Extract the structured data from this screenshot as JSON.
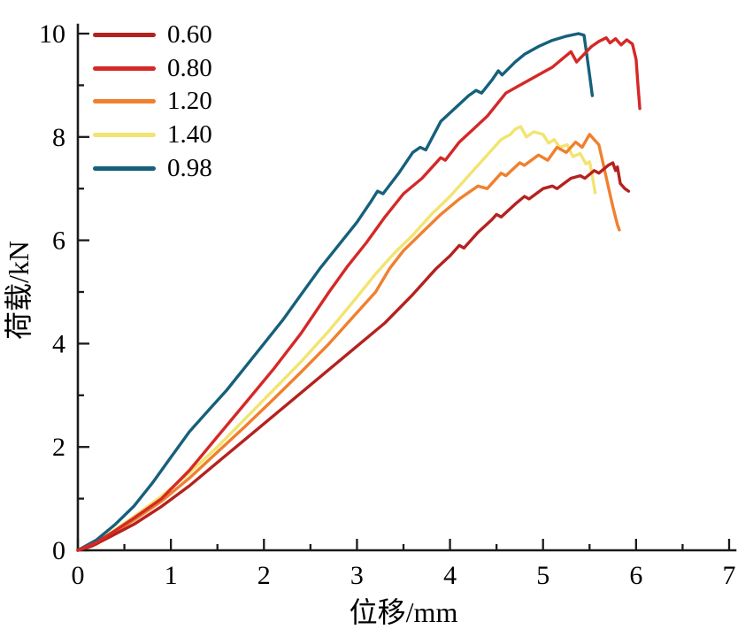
{
  "figure": {
    "background": "#ffffff"
  },
  "chart_data": {
    "type": "line",
    "title": "",
    "xlabel": "位移/mm",
    "ylabel": "荷载/kN",
    "xlim": [
      0,
      7
    ],
    "ylim": [
      0,
      10
    ],
    "xticks": [
      0,
      1,
      2,
      3,
      4,
      5,
      6,
      7
    ],
    "yticks": [
      0,
      2,
      4,
      6,
      8,
      10
    ],
    "x_minor_ticks": [
      0.5,
      1.5,
      2.5,
      3.5,
      4.5,
      5.5,
      6.5
    ],
    "y_minor_ticks": [
      1,
      3,
      5,
      7,
      9
    ],
    "grid": false,
    "legend_position": "top-left",
    "axis_color": "#1a1a1a",
    "draw_order": [
      "1.40",
      "1.20",
      "0.60",
      "0.98",
      "0.80"
    ],
    "series": [
      {
        "name": "0.60",
        "color": "#b4221f",
        "peak_kN": 7.5,
        "points": [
          [
            0,
            0
          ],
          [
            0.15,
            0.08
          ],
          [
            0.3,
            0.22
          ],
          [
            0.6,
            0.5
          ],
          [
            0.9,
            0.85
          ],
          [
            1.2,
            1.25
          ],
          [
            1.5,
            1.7
          ],
          [
            1.8,
            2.15
          ],
          [
            2.1,
            2.6
          ],
          [
            2.4,
            3.05
          ],
          [
            2.7,
            3.5
          ],
          [
            3.0,
            3.95
          ],
          [
            3.3,
            4.4
          ],
          [
            3.6,
            4.95
          ],
          [
            3.85,
            5.45
          ],
          [
            4.0,
            5.7
          ],
          [
            4.1,
            5.9
          ],
          [
            4.15,
            5.85
          ],
          [
            4.3,
            6.15
          ],
          [
            4.45,
            6.4
          ],
          [
            4.5,
            6.5
          ],
          [
            4.55,
            6.45
          ],
          [
            4.7,
            6.7
          ],
          [
            4.8,
            6.85
          ],
          [
            4.85,
            6.8
          ],
          [
            5.0,
            7.0
          ],
          [
            5.1,
            7.05
          ],
          [
            5.15,
            7.0
          ],
          [
            5.3,
            7.2
          ],
          [
            5.4,
            7.25
          ],
          [
            5.45,
            7.2
          ],
          [
            5.55,
            7.35
          ],
          [
            5.6,
            7.3
          ],
          [
            5.7,
            7.45
          ],
          [
            5.75,
            7.5
          ],
          [
            5.78,
            7.35
          ],
          [
            5.8,
            7.42
          ],
          [
            5.83,
            7.1
          ],
          [
            5.88,
            7.0
          ],
          [
            5.92,
            6.95
          ]
        ]
      },
      {
        "name": "0.80",
        "color": "#d42927",
        "peak_kN": 9.9,
        "points": [
          [
            0,
            0
          ],
          [
            0.2,
            0.15
          ],
          [
            0.4,
            0.38
          ],
          [
            0.6,
            0.62
          ],
          [
            0.9,
            1.0
          ],
          [
            1.2,
            1.55
          ],
          [
            1.5,
            2.2
          ],
          [
            1.8,
            2.85
          ],
          [
            2.1,
            3.5
          ],
          [
            2.4,
            4.2
          ],
          [
            2.7,
            5.0
          ],
          [
            2.9,
            5.5
          ],
          [
            3.1,
            5.95
          ],
          [
            3.3,
            6.45
          ],
          [
            3.5,
            6.9
          ],
          [
            3.7,
            7.2
          ],
          [
            3.9,
            7.6
          ],
          [
            3.95,
            7.55
          ],
          [
            4.1,
            7.9
          ],
          [
            4.25,
            8.15
          ],
          [
            4.4,
            8.4
          ],
          [
            4.6,
            8.85
          ],
          [
            4.75,
            9.0
          ],
          [
            4.9,
            9.15
          ],
          [
            5.0,
            9.25
          ],
          [
            5.1,
            9.35
          ],
          [
            5.2,
            9.5
          ],
          [
            5.3,
            9.65
          ],
          [
            5.36,
            9.45
          ],
          [
            5.44,
            9.6
          ],
          [
            5.52,
            9.75
          ],
          [
            5.6,
            9.85
          ],
          [
            5.68,
            9.92
          ],
          [
            5.72,
            9.82
          ],
          [
            5.78,
            9.9
          ],
          [
            5.84,
            9.78
          ],
          [
            5.9,
            9.88
          ],
          [
            5.96,
            9.8
          ],
          [
            6.0,
            9.5
          ],
          [
            6.02,
            9.0
          ],
          [
            6.04,
            8.55
          ]
        ]
      },
      {
        "name": "1.20",
        "color": "#f0802f",
        "peak_kN": 8.1,
        "points": [
          [
            0,
            0
          ],
          [
            0.2,
            0.12
          ],
          [
            0.4,
            0.35
          ],
          [
            0.6,
            0.58
          ],
          [
            0.9,
            0.95
          ],
          [
            1.2,
            1.4
          ],
          [
            1.5,
            1.9
          ],
          [
            1.8,
            2.4
          ],
          [
            2.1,
            2.92
          ],
          [
            2.4,
            3.45
          ],
          [
            2.7,
            4.0
          ],
          [
            3.0,
            4.6
          ],
          [
            3.2,
            5.0
          ],
          [
            3.35,
            5.45
          ],
          [
            3.5,
            5.8
          ],
          [
            3.7,
            6.15
          ],
          [
            3.9,
            6.5
          ],
          [
            4.1,
            6.8
          ],
          [
            4.3,
            7.05
          ],
          [
            4.4,
            7.0
          ],
          [
            4.55,
            7.3
          ],
          [
            4.6,
            7.25
          ],
          [
            4.75,
            7.5
          ],
          [
            4.8,
            7.45
          ],
          [
            4.95,
            7.65
          ],
          [
            5.05,
            7.55
          ],
          [
            5.15,
            7.8
          ],
          [
            5.25,
            7.7
          ],
          [
            5.35,
            7.9
          ],
          [
            5.42,
            7.8
          ],
          [
            5.5,
            8.05
          ],
          [
            5.55,
            7.95
          ],
          [
            5.6,
            7.85
          ],
          [
            5.65,
            7.45
          ],
          [
            5.7,
            7.05
          ],
          [
            5.75,
            6.65
          ],
          [
            5.8,
            6.3
          ],
          [
            5.82,
            6.2
          ]
        ]
      },
      {
        "name": "1.40",
        "color": "#f2e470",
        "peak_kN": 8.2,
        "points": [
          [
            0,
            0
          ],
          [
            0.2,
            0.15
          ],
          [
            0.4,
            0.4
          ],
          [
            0.6,
            0.65
          ],
          [
            0.9,
            1.05
          ],
          [
            1.2,
            1.5
          ],
          [
            1.5,
            2.0
          ],
          [
            1.8,
            2.55
          ],
          [
            2.1,
            3.1
          ],
          [
            2.4,
            3.65
          ],
          [
            2.7,
            4.25
          ],
          [
            3.0,
            4.9
          ],
          [
            3.2,
            5.35
          ],
          [
            3.4,
            5.75
          ],
          [
            3.6,
            6.1
          ],
          [
            3.8,
            6.5
          ],
          [
            4.0,
            6.85
          ],
          [
            4.2,
            7.25
          ],
          [
            4.4,
            7.65
          ],
          [
            4.55,
            7.95
          ],
          [
            4.65,
            8.05
          ],
          [
            4.7,
            8.15
          ],
          [
            4.76,
            8.2
          ],
          [
            4.82,
            8.0
          ],
          [
            4.9,
            8.1
          ],
          [
            5.0,
            8.05
          ],
          [
            5.06,
            7.88
          ],
          [
            5.12,
            7.95
          ],
          [
            5.18,
            7.8
          ],
          [
            5.26,
            7.85
          ],
          [
            5.32,
            7.62
          ],
          [
            5.4,
            7.68
          ],
          [
            5.46,
            7.48
          ],
          [
            5.5,
            7.52
          ],
          [
            5.53,
            7.25
          ],
          [
            5.56,
            6.92
          ]
        ]
      },
      {
        "name": "0.98",
        "color": "#16607b",
        "peak_kN": 10.0,
        "points": [
          [
            0,
            0
          ],
          [
            0.2,
            0.2
          ],
          [
            0.4,
            0.5
          ],
          [
            0.6,
            0.85
          ],
          [
            0.8,
            1.3
          ],
          [
            1.0,
            1.8
          ],
          [
            1.2,
            2.3
          ],
          [
            1.4,
            2.7
          ],
          [
            1.6,
            3.1
          ],
          [
            1.8,
            3.55
          ],
          [
            2.0,
            4.0
          ],
          [
            2.2,
            4.45
          ],
          [
            2.4,
            4.95
          ],
          [
            2.6,
            5.45
          ],
          [
            2.8,
            5.9
          ],
          [
            3.0,
            6.35
          ],
          [
            3.15,
            6.75
          ],
          [
            3.22,
            6.95
          ],
          [
            3.28,
            6.9
          ],
          [
            3.45,
            7.3
          ],
          [
            3.6,
            7.7
          ],
          [
            3.68,
            7.8
          ],
          [
            3.74,
            7.75
          ],
          [
            3.9,
            8.3
          ],
          [
            4.05,
            8.55
          ],
          [
            4.2,
            8.8
          ],
          [
            4.28,
            8.9
          ],
          [
            4.34,
            8.85
          ],
          [
            4.45,
            9.1
          ],
          [
            4.52,
            9.28
          ],
          [
            4.56,
            9.2
          ],
          [
            4.7,
            9.45
          ],
          [
            4.8,
            9.6
          ],
          [
            4.95,
            9.75
          ],
          [
            5.1,
            9.87
          ],
          [
            5.25,
            9.95
          ],
          [
            5.38,
            10.0
          ],
          [
            5.44,
            9.97
          ],
          [
            5.47,
            9.6
          ],
          [
            5.5,
            9.2
          ],
          [
            5.53,
            8.8
          ]
        ]
      }
    ]
  }
}
